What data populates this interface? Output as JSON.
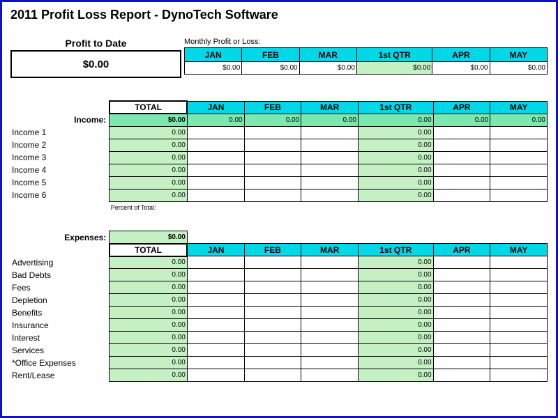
{
  "title": "2011 Profit Loss Report - DynoTech Software",
  "profit_to_date_label": "Profit to Date",
  "profit_to_date_value": "$0.00",
  "monthly_profit_label": "Monthly Profit or Loss:",
  "months": [
    "JAN",
    "FEB",
    "MAR",
    "1st QTR",
    "APR",
    "MAY"
  ],
  "monthly_values": [
    "$0.00",
    "$0.00",
    "$0.00",
    "$0.00",
    "$0.00",
    "$0.00"
  ],
  "total_label": "TOTAL",
  "income_label": "Income:",
  "income_total": "$0.00",
  "income_month_vals": [
    "0.00",
    "0.00",
    "0.00",
    "0.00",
    "0.00",
    "0.00"
  ],
  "income_rows": [
    {
      "label": "Income 1",
      "total": "0.00",
      "qtr": "0.00"
    },
    {
      "label": "Income 2",
      "total": "0.00",
      "qtr": "0.00"
    },
    {
      "label": "Income 3",
      "total": "0.00",
      "qtr": "0.00"
    },
    {
      "label": "Income 4",
      "total": "0.00",
      "qtr": "0.00"
    },
    {
      "label": "Income 5",
      "total": "0.00",
      "qtr": "0.00"
    },
    {
      "label": "Income 6",
      "total": "0.00",
      "qtr": "0.00"
    }
  ],
  "percent_label": "Percent of Total:",
  "expenses_label": "Expenses:",
  "expenses_total": "$0.00",
  "expense_rows": [
    {
      "label": "Advertising",
      "total": "0.00",
      "qtr": "0.00"
    },
    {
      "label": "Bad Debts",
      "total": "0.00",
      "qtr": "0.00"
    },
    {
      "label": "Fees",
      "total": "0.00",
      "qtr": "0.00"
    },
    {
      "label": "Depletion",
      "total": "0.00",
      "qtr": "0.00"
    },
    {
      "label": "Benefits",
      "total": "0.00",
      "qtr": "0.00"
    },
    {
      "label": "Insurance",
      "total": "0.00",
      "qtr": "0.00"
    },
    {
      "label": "Interest",
      "total": "0.00",
      "qtr": "0.00"
    },
    {
      "label": "Services",
      "total": "0.00",
      "qtr": "0.00"
    },
    {
      "label": "*Office Expenses",
      "total": "0.00",
      "qtr": "0.00"
    },
    {
      "label": "Rent/Lease",
      "total": "0.00",
      "qtr": "0.00"
    }
  ],
  "colors": {
    "cyan_header": "#00d8e8",
    "light_green": "#c4f0c4",
    "bold_green": "#7be8b0",
    "border_blue": "#1010cc"
  }
}
